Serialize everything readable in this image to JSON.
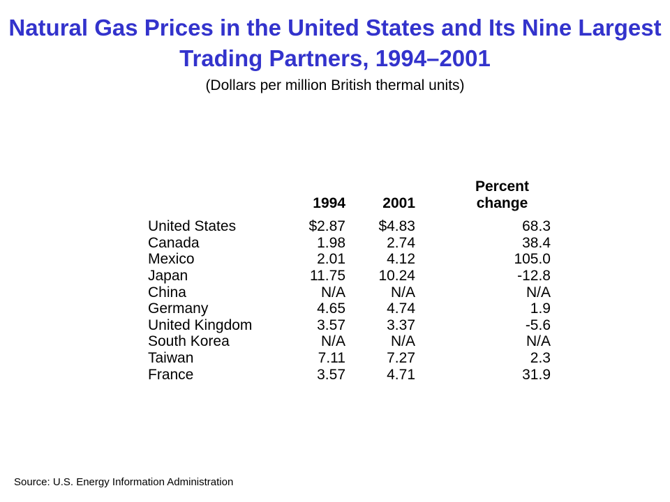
{
  "title": "Natural Gas Prices in the United States and Its Nine Largest Trading Partners, 1994–2001",
  "subtitle": "(Dollars per million British thermal units)",
  "table": {
    "headers": {
      "year1": "1994",
      "year2": "2001",
      "change_line1": "Percent",
      "change_line2": "change"
    },
    "rows": [
      {
        "country": "United States",
        "y1994": "$2.87",
        "y2001": "$4.83",
        "change": "68.3"
      },
      {
        "country": "Canada",
        "y1994": "1.98",
        "y2001": "2.74",
        "change": "38.4"
      },
      {
        "country": "Mexico",
        "y1994": "2.01",
        "y2001": "4.12",
        "change": "105.0"
      },
      {
        "country": "Japan",
        "y1994": "11.75",
        "y2001": "10.24",
        "change": "-12.8"
      },
      {
        "country": "China",
        "y1994": "N/A",
        "y2001": "N/A",
        "change": "N/A"
      },
      {
        "country": "Germany",
        "y1994": "4.65",
        "y2001": "4.74",
        "change": "1.9"
      },
      {
        "country": "United Kingdom",
        "y1994": "3.57",
        "y2001": "3.37",
        "change": "-5.6"
      },
      {
        "country": "South Korea",
        "y1994": "N/A",
        "y2001": "N/A",
        "change": "N/A"
      },
      {
        "country": "Taiwan",
        "y1994": "7.11",
        "y2001": "7.27",
        "change": "2.3"
      },
      {
        "country": "France",
        "y1994": "3.57",
        "y2001": "4.71",
        "change": "31.9"
      }
    ]
  },
  "source": "Source:  U.S. Energy Information Administration",
  "colors": {
    "title": "#3333cc",
    "text": "#000000",
    "background": "#ffffff"
  }
}
